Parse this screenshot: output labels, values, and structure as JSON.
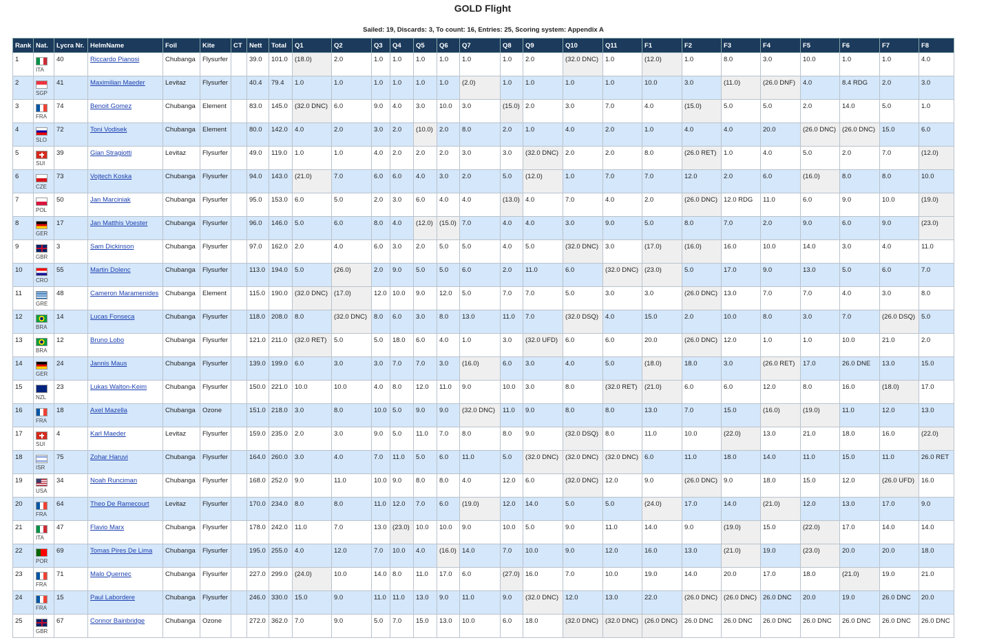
{
  "header": {
    "title": "GOLD Flight",
    "subtitle": "Sailed: 19, Discards: 3, To count: 16, Entries: 25, Scoring system: Appendix A"
  },
  "table": {
    "headers": [
      "Rank",
      "Nat.",
      "Lycra Nr.",
      "HelmName",
      "Foil",
      "Kite",
      "CT",
      "Nett",
      "Total",
      "Q1",
      "Q2",
      "Q3",
      "Q4",
      "Q5",
      "Q6",
      "Q7",
      "Q8",
      "Q9",
      "Q10",
      "Q11",
      "F1",
      "F2",
      "F3",
      "F4",
      "F5",
      "F6",
      "F7",
      "F8"
    ],
    "rows": [
      [
        "1",
        "ITA",
        "40",
        "Riccardo Pianosi",
        "Chubanga",
        "Flysurfer",
        null,
        "39.0",
        "101.0",
        "(18.0)",
        "2.0",
        "1.0",
        "1.0",
        "1.0",
        "1.0",
        "1.0",
        "1.0",
        "2.0",
        "(32.0 DNC)",
        "1.0",
        "(12.0)",
        "1.0",
        "8.0",
        "3.0",
        "10.0",
        "1.0",
        "1.0",
        "4.0"
      ],
      [
        "2",
        "SGP",
        "41",
        "Maximilian Maeder",
        "Levitaz",
        "Flysurfer",
        null,
        "40.4",
        "79.4",
        "1.0",
        "1.0",
        "1.0",
        "1.0",
        "1.0",
        "1.0",
        "(2.0)",
        "1.0",
        "1.0",
        "1.0",
        "1.0",
        "10.0",
        "3.0",
        "(11.0)",
        "(26.0 DNF)",
        "4.0",
        "8.4 RDG",
        "2.0",
        "3.0"
      ],
      [
        "3",
        "FRA",
        "74",
        "Benoit Gomez",
        "Chubanga",
        "Element",
        null,
        "83.0",
        "145.0",
        "(32.0 DNC)",
        "6.0",
        "9.0",
        "4.0",
        "3.0",
        "10.0",
        "3.0",
        "(15.0)",
        "2.0",
        "3.0",
        "7.0",
        "4.0",
        "(15.0)",
        "5.0",
        "5.0",
        "2.0",
        "14.0",
        "5.0",
        "1.0"
      ],
      [
        "4",
        "SLO",
        "72",
        "Toni Vodisek",
        "Chubanga",
        "Element",
        null,
        "80.0",
        "142.0",
        "4.0",
        "2.0",
        "3.0",
        "2.0",
        "(10.0)",
        "2.0",
        "8.0",
        "2.0",
        "1.0",
        "4.0",
        "2.0",
        "1.0",
        "4.0",
        "4.0",
        "20.0",
        "(26.0 DNC)",
        "(26.0 DNC)",
        "15.0",
        "6.0"
      ],
      [
        "5",
        "SUI",
        "39",
        "Gian Stragiotti",
        "Levitaz",
        "Flysurfer",
        null,
        "49.0",
        "119.0",
        "1.0",
        "1.0",
        "4.0",
        "2.0",
        "2.0",
        "2.0",
        "3.0",
        "3.0",
        "(32.0 DNC)",
        "2.0",
        "2.0",
        "8.0",
        "(26.0 RET)",
        "1.0",
        "4.0",
        "5.0",
        "2.0",
        "7.0",
        "(12.0)"
      ],
      [
        "6",
        "CZE",
        "73",
        "Vojtech Koska",
        "Chubanga",
        "Flysurfer",
        null,
        "94.0",
        "143.0",
        "(21.0)",
        "7.0",
        "6.0",
        "6.0",
        "4.0",
        "3.0",
        "2.0",
        "5.0",
        "(12.0)",
        "1.0",
        "7.0",
        "7.0",
        "12.0",
        "2.0",
        "6.0",
        "(16.0)",
        "8.0",
        "8.0",
        "10.0"
      ],
      [
        "7",
        "POL",
        "50",
        "Jan Marciniak",
        "Chubanga",
        "Flysurfer",
        null,
        "95.0",
        "153.0",
        "6.0",
        "5.0",
        "2.0",
        "3.0",
        "6.0",
        "4.0",
        "4.0",
        "(13.0)",
        "4.0",
        "7.0",
        "4.0",
        "2.0",
        "(26.0 DNC)",
        "12.0 RDG",
        "11.0",
        "6.0",
        "9.0",
        "10.0",
        "(19.0)"
      ],
      [
        "8",
        "GER",
        "17",
        "Jan Matthis Voester",
        "Chubanga",
        "Flysurfer",
        null,
        "96.0",
        "146.0",
        "5.0",
        "6.0",
        "8.0",
        "4.0",
        "(12.0)",
        "(15.0)",
        "7.0",
        "4.0",
        "4.0",
        "3.0",
        "9.0",
        "5.0",
        "8.0",
        "7.0",
        "2.0",
        "9.0",
        "6.0",
        "9.0",
        "(23.0)"
      ],
      [
        "9",
        "GBR",
        "3",
        "Sam Dickinson",
        "Chubanga",
        "Flysurfer",
        null,
        "97.0",
        "162.0",
        "2.0",
        "4.0",
        "6.0",
        "3.0",
        "2.0",
        "5.0",
        "5.0",
        "4.0",
        "5.0",
        "(32.0 DNC)",
        "3.0",
        "(17.0)",
        "(16.0)",
        "16.0",
        "10.0",
        "14.0",
        "3.0",
        "4.0",
        "11.0"
      ],
      [
        "10",
        "CRO",
        "55",
        "Martin Dolenc",
        "Chubanga",
        "Flysurfer",
        null,
        "113.0",
        "194.0",
        "5.0",
        "(26.0)",
        "2.0",
        "9.0",
        "5.0",
        "5.0",
        "6.0",
        "2.0",
        "11.0",
        "6.0",
        "(32.0 DNC)",
        "(23.0)",
        "5.0",
        "17.0",
        "9.0",
        "13.0",
        "5.0",
        "6.0",
        "7.0"
      ],
      [
        "11",
        "GRE",
        "48",
        "Cameron Maramenides",
        "Chubanga",
        "Element",
        null,
        "115.0",
        "190.0",
        "(32.0 DNC)",
        "(17.0)",
        "12.0",
        "10.0",
        "9.0",
        "12.0",
        "5.0",
        "7.0",
        "7.0",
        "5.0",
        "3.0",
        "3.0",
        "(26.0 DNC)",
        "13.0",
        "7.0",
        "7.0",
        "4.0",
        "3.0",
        "8.0"
      ],
      [
        "12",
        "BRA",
        "14",
        "Lucas Fonseca",
        "Chubanga",
        "Flysurfer",
        null,
        "118.0",
        "208.0",
        "8.0",
        "(32.0 DNC)",
        "8.0",
        "6.0",
        "3.0",
        "8.0",
        "13.0",
        "11.0",
        "7.0",
        "(32.0 DSQ)",
        "4.0",
        "15.0",
        "2.0",
        "10.0",
        "8.0",
        "3.0",
        "7.0",
        "(26.0 DSQ)",
        "5.0"
      ],
      [
        "13",
        "BRA",
        "12",
        "Bruno Lobo",
        "Chubanga",
        "Flysurfer",
        null,
        "121.0",
        "211.0",
        "(32.0 RET)",
        "5.0",
        "5.0",
        "18.0",
        "6.0",
        "4.0",
        "1.0",
        "3.0",
        "(32.0 UFD)",
        "6.0",
        "6.0",
        "20.0",
        "(26.0 DNC)",
        "12.0",
        "1.0",
        "1.0",
        "10.0",
        "21.0",
        "2.0"
      ],
      [
        "14",
        "GER",
        "24",
        "Jannis Maus",
        "Chubanga",
        "Flysurfer",
        null,
        "139.0",
        "199.0",
        "6.0",
        "3.0",
        "3.0",
        "7.0",
        "7.0",
        "3.0",
        "(16.0)",
        "6.0",
        "3.0",
        "4.0",
        "5.0",
        "(18.0)",
        "18.0",
        "3.0",
        "(26.0 RET)",
        "17.0",
        "26.0 DNE",
        "13.0",
        "15.0"
      ],
      [
        "15",
        "NZL",
        "23",
        "Lukas Walton-Keim",
        "Chubanga",
        "Flysurfer",
        null,
        "150.0",
        "221.0",
        "10.0",
        "10.0",
        "4.0",
        "8.0",
        "12.0",
        "11.0",
        "9.0",
        "10.0",
        "3.0",
        "8.0",
        "(32.0 RET)",
        "(21.0)",
        "6.0",
        "6.0",
        "12.0",
        "8.0",
        "16.0",
        "(18.0)",
        "17.0"
      ],
      [
        "16",
        "FRA",
        "18",
        "Axel Mazella",
        "Chubanga",
        "Ozone",
        null,
        "151.0",
        "218.0",
        "3.0",
        "8.0",
        "10.0",
        "5.0",
        "9.0",
        "9.0",
        "(32.0 DNC)",
        "11.0",
        "9.0",
        "8.0",
        "8.0",
        "13.0",
        "7.0",
        "15.0",
        "(16.0)",
        "(19.0)",
        "11.0",
        "12.0",
        "13.0"
      ],
      [
        "17",
        "SUI",
        "4",
        "Karl Maeder",
        "Levitaz",
        "Flysurfer",
        null,
        "159.0",
        "235.0",
        "2.0",
        "3.0",
        "9.0",
        "5.0",
        "11.0",
        "7.0",
        "8.0",
        "8.0",
        "9.0",
        "(32.0 DSQ)",
        "8.0",
        "11.0",
        "10.0",
        "(22.0)",
        "13.0",
        "21.0",
        "18.0",
        "16.0",
        "(22.0)"
      ],
      [
        "18",
        "ISR",
        "75",
        "Zohar Haruvi",
        "Chubanga",
        "Flysurfer",
        null,
        "164.0",
        "260.0",
        "3.0",
        "4.0",
        "7.0",
        "11.0",
        "5.0",
        "6.0",
        "11.0",
        "5.0",
        "(32.0 DNC)",
        "(32.0 DNC)",
        "(32.0 DNC)",
        "6.0",
        "11.0",
        "18.0",
        "14.0",
        "11.0",
        "15.0",
        "11.0",
        "26.0 RET"
      ],
      [
        "19",
        "USA",
        "34",
        "Noah Runciman",
        "Chubanga",
        "Flysurfer",
        null,
        "168.0",
        "252.0",
        "9.0",
        "11.0",
        "10.0",
        "9.0",
        "8.0",
        "8.0",
        "4.0",
        "12.0",
        "6.0",
        "(32.0 DNC)",
        "12.0",
        "9.0",
        "(26.0 DNC)",
        "9.0",
        "18.0",
        "15.0",
        "12.0",
        "(26.0 UFD)",
        "16.0"
      ],
      [
        "20",
        "FRA",
        "64",
        "Theo De Ramecourt",
        "Levitaz",
        "Flysurfer",
        null,
        "170.0",
        "234.0",
        "8.0",
        "8.0",
        "11.0",
        "12.0",
        "7.0",
        "6.0",
        "(19.0)",
        "12.0",
        "14.0",
        "5.0",
        "5.0",
        "(24.0)",
        "17.0",
        "14.0",
        "(21.0)",
        "12.0",
        "13.0",
        "17.0",
        "9.0"
      ],
      [
        "21",
        "ITA",
        "47",
        "Flavio Marx",
        "Chubanga",
        "Flysurfer",
        null,
        "178.0",
        "242.0",
        "11.0",
        "7.0",
        "13.0",
        "(23.0)",
        "10.0",
        "10.0",
        "9.0",
        "10.0",
        "5.0",
        "9.0",
        "11.0",
        "14.0",
        "9.0",
        "(19.0)",
        "15.0",
        "(22.0)",
        "17.0",
        "14.0",
        "14.0"
      ],
      [
        "22",
        "POR",
        "69",
        "Tomas Pires De Lima",
        "Chubanga",
        "Flysurfer",
        null,
        "195.0",
        "255.0",
        "4.0",
        "12.0",
        "7.0",
        "10.0",
        "4.0",
        "(16.0)",
        "14.0",
        "7.0",
        "10.0",
        "9.0",
        "12.0",
        "16.0",
        "13.0",
        "(21.0)",
        "19.0",
        "(23.0)",
        "20.0",
        "20.0",
        "18.0"
      ],
      [
        "23",
        "FRA",
        "71",
        "Malo Quernec",
        "Chubanga",
        "Flysurfer",
        null,
        "227.0",
        "299.0",
        "(24.0)",
        "10.0",
        "14.0",
        "8.0",
        "11.0",
        "17.0",
        "6.0",
        "(27.0)",
        "16.0",
        "7.0",
        "10.0",
        "19.0",
        "14.0",
        "20.0",
        "17.0",
        "18.0",
        "(21.0)",
        "19.0",
        "21.0"
      ],
      [
        "24",
        "FRA",
        "15",
        "Paul Laborderе",
        "Chubanga",
        "Flysurfer",
        null,
        "246.0",
        "330.0",
        "15.0",
        "9.0",
        "11.0",
        "11.0",
        "13.0",
        "9.0",
        "11.0",
        "9.0",
        "(32.0 DNC)",
        "12.0",
        "13.0",
        "22.0",
        "(26.0 DNC)",
        "(26.0 DNC)",
        "26.0 DNC",
        "20.0",
        "19.0",
        "26.0 DNC",
        "20.0"
      ],
      [
        "25",
        "GBR",
        "67",
        "Connor Bainbridge",
        "Chubanga",
        "Ozone",
        null,
        "272.0",
        "362.0",
        "7.0",
        "9.0",
        "5.0",
        "7.0",
        "15.0",
        "13.0",
        "10.0",
        "6.0",
        "18.0",
        "(32.0 DNC)",
        "(32.0 DNC)",
        "(26.0 DNC)",
        "26.0 DNC",
        "26.0 DNC",
        "26.0 DNC",
        "26.0 DNC",
        "26.0 DNC",
        "26.0 DNC",
        "26.0 DNC"
      ]
    ]
  }
}
